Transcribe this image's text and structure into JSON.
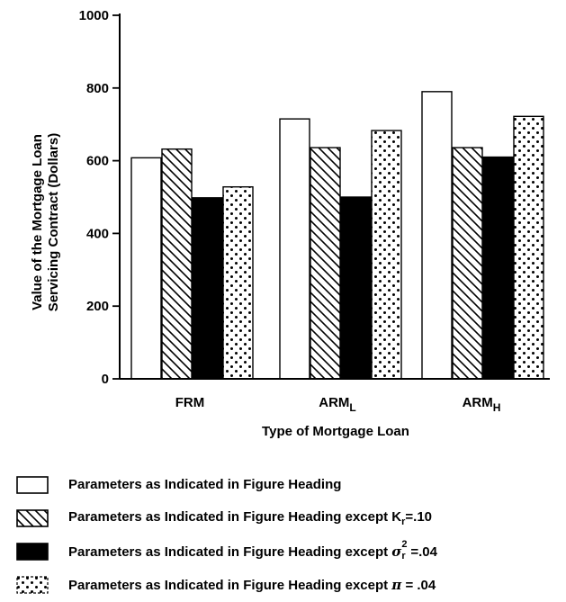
{
  "chart_data": {
    "type": "bar",
    "ylabel_line1": "Value of the Mortgage Loan",
    "ylabel_line2": "Servicing Contract (Dollars)",
    "xlabel": "Type of Mortgage Loan",
    "ylim": [
      0,
      1000
    ],
    "yticks": [
      "0",
      "200",
      "400",
      "600",
      "800",
      "1000"
    ],
    "ytick_values": [
      0,
      200,
      400,
      600,
      800,
      1000
    ],
    "categories": [
      {
        "base": "FRM",
        "sub": ""
      },
      {
        "base": "ARM",
        "sub": "L"
      },
      {
        "base": "ARM",
        "sub": "H"
      }
    ],
    "series": [
      {
        "pattern": "white",
        "values": [
          608,
          715,
          790
        ]
      },
      {
        "pattern": "diagonal-hatch",
        "values": [
          632,
          636,
          636
        ]
      },
      {
        "pattern": "solid-black",
        "values": [
          498,
          500,
          610
        ]
      },
      {
        "pattern": "dots",
        "values": [
          528,
          683,
          722
        ]
      }
    ]
  },
  "legend": [
    {
      "pattern": "white",
      "text": "Parameters as Indicated in Figure Heading"
    },
    {
      "pattern": "diagonal-hatch",
      "text": "Parameters as Indicated in Figure Heading except K",
      "sub": "r",
      "tail": "=.10"
    },
    {
      "pattern": "solid-black",
      "text": "Parameters as Indicated in Figure Heading except ",
      "symbol": "σ",
      "sup": "2",
      "sub": "r",
      "tail": "=.04"
    },
    {
      "pattern": "dots",
      "text": "Parameters as Indicated in Figure Heading except ",
      "symbol": "π",
      "tail": " = .04"
    }
  ]
}
